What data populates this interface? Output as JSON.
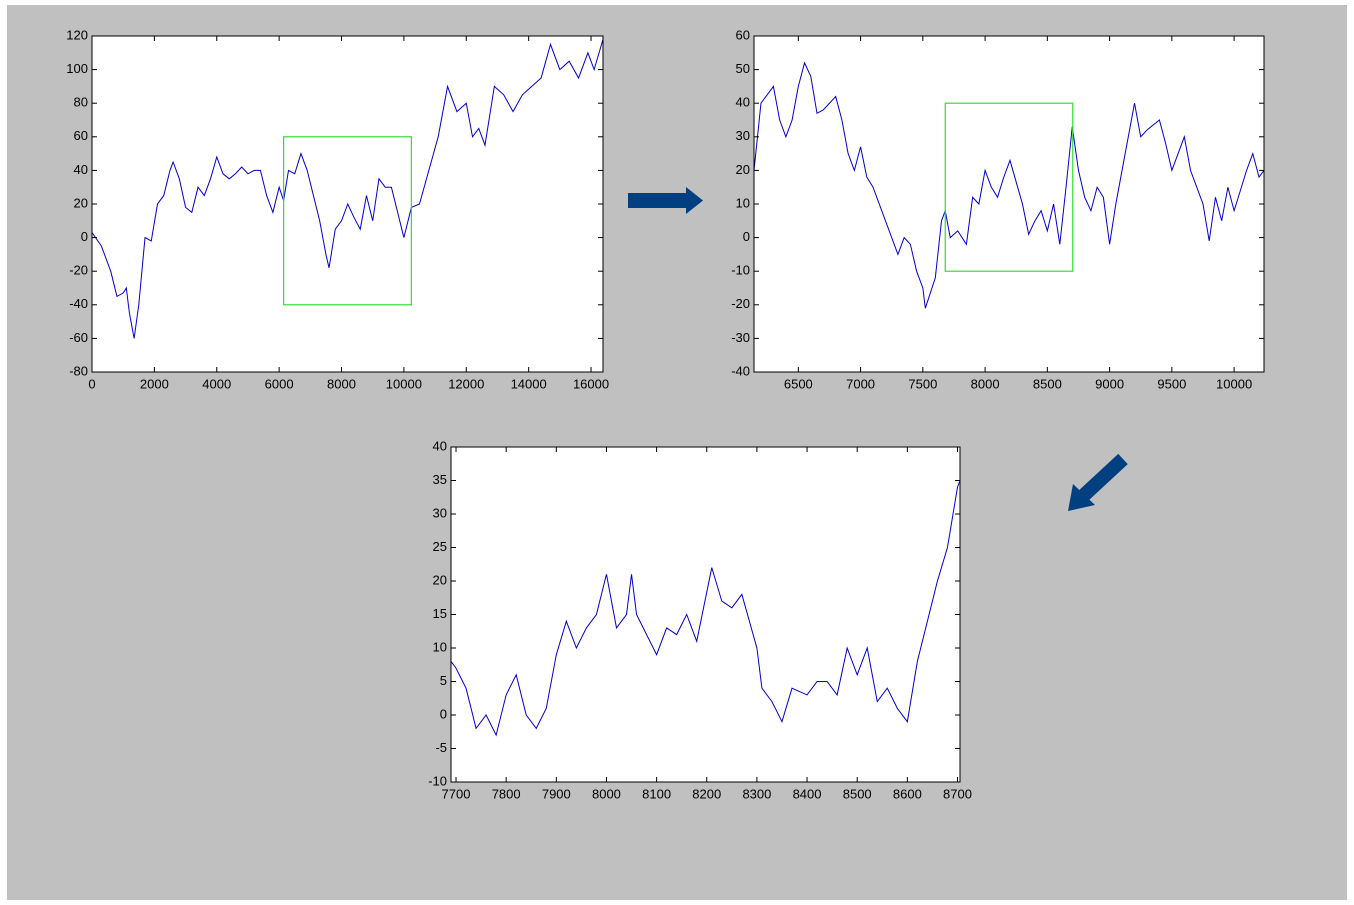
{
  "chart_data": [
    {
      "type": "line",
      "x": [
        0,
        300,
        600,
        800,
        1000,
        1100,
        1200,
        1350,
        1500,
        1700,
        1900,
        2100,
        2300,
        2500,
        2600,
        2800,
        3000,
        3200,
        3400,
        3600,
        3800,
        4000,
        4200,
        4400,
        4600,
        4800,
        5000,
        5200,
        5400,
        5600,
        5800,
        6000,
        6144,
        6300,
        6500,
        6700,
        6900,
        7100,
        7300,
        7500,
        7600,
        7800,
        8000,
        8200,
        8400,
        8600,
        8800,
        9000,
        9200,
        9400,
        9600,
        9800,
        10000,
        10240,
        10500,
        10800,
        11100,
        11400,
        11700,
        12000,
        12200,
        12400,
        12600,
        12900,
        13200,
        13500,
        13800,
        14100,
        14400,
        14700,
        15000,
        15300,
        15600,
        15900,
        16100,
        16384
      ],
      "series": [
        {
          "color": "#0000cc",
          "values": [
            3,
            -5,
            -20,
            -35,
            -33,
            -30,
            -45,
            -60,
            -40,
            0,
            -2,
            20,
            25,
            40,
            45,
            35,
            18,
            15,
            30,
            25,
            35,
            48,
            38,
            35,
            38,
            42,
            38,
            40,
            40,
            25,
            15,
            30,
            22,
            40,
            38,
            50,
            40,
            25,
            10,
            -10,
            -18,
            5,
            10,
            20,
            12,
            5,
            25,
            10,
            35,
            30,
            30,
            15,
            0,
            18,
            20,
            40,
            60,
            90,
            75,
            80,
            60,
            65,
            55,
            90,
            85,
            75,
            85,
            90,
            95,
            115,
            100,
            105,
            95,
            110,
            100,
            118
          ]
        }
      ],
      "xlim": [
        0,
        16384
      ],
      "ylim": [
        -80,
        120
      ],
      "xticks": [
        0,
        2000,
        4000,
        6000,
        8000,
        10000,
        12000,
        14000,
        16000
      ],
      "yticks": [
        -80,
        -60,
        -40,
        -20,
        0,
        20,
        40,
        60,
        80,
        100,
        120
      ],
      "zoom_box": {
        "color": "#33dd33",
        "x": [
          6144,
          10240
        ],
        "y": [
          -40,
          60
        ]
      }
    },
    {
      "type": "line",
      "x": [
        6144,
        6200,
        6300,
        6350,
        6400,
        6450,
        6500,
        6550,
        6600,
        6650,
        6700,
        6800,
        6850,
        6900,
        6950,
        7000,
        7050,
        7100,
        7200,
        7300,
        7350,
        7400,
        7450,
        7500,
        7520,
        7600,
        7650,
        7680,
        7720,
        7780,
        7850,
        7900,
        7950,
        8000,
        8050,
        8100,
        8150,
        8200,
        8300,
        8350,
        8400,
        8450,
        8500,
        8550,
        8600,
        8650,
        8700,
        8750,
        8800,
        8850,
        8900,
        8950,
        9000,
        9050,
        9100,
        9200,
        9250,
        9300,
        9400,
        9450,
        9500,
        9600,
        9650,
        9700,
        9750,
        9800,
        9850,
        9900,
        9950,
        10000,
        10100,
        10150,
        10200,
        10240
      ],
      "series": [
        {
          "color": "#0000cc",
          "values": [
            20,
            40,
            45,
            35,
            30,
            35,
            45,
            52,
            48,
            37,
            38,
            42,
            35,
            25,
            20,
            27,
            18,
            15,
            5,
            -5,
            0,
            -2,
            -10,
            -15,
            -21,
            -12,
            5,
            8,
            0,
            2,
            -2,
            12,
            10,
            20,
            15,
            12,
            18,
            23,
            10,
            1,
            5,
            8,
            2,
            10,
            -2,
            15,
            33,
            20,
            12,
            8,
            15,
            12,
            -2,
            10,
            20,
            40,
            30,
            32,
            35,
            28,
            20,
            30,
            20,
            15,
            10,
            -1,
            12,
            5,
            15,
            8,
            20,
            25,
            18,
            20
          ]
        }
      ],
      "xlim": [
        6144,
        10240
      ],
      "ylim": [
        -40,
        60
      ],
      "xticks": [
        6500,
        7000,
        7500,
        8000,
        8500,
        9000,
        9500,
        10000
      ],
      "yticks": [
        -40,
        -30,
        -20,
        -10,
        0,
        10,
        20,
        30,
        40,
        50,
        60
      ],
      "zoom_box": {
        "color": "#33dd33",
        "x": [
          7680,
          8704
        ],
        "y": [
          -10,
          40
        ]
      }
    },
    {
      "type": "line",
      "x": [
        7690,
        7700,
        7720,
        7740,
        7760,
        7780,
        7800,
        7820,
        7840,
        7860,
        7880,
        7900,
        7920,
        7940,
        7960,
        7980,
        8000,
        8020,
        8040,
        8050,
        8060,
        8080,
        8100,
        8120,
        8140,
        8160,
        8180,
        8210,
        8230,
        8250,
        8270,
        8300,
        8310,
        8330,
        8350,
        8370,
        8400,
        8420,
        8440,
        8460,
        8480,
        8500,
        8520,
        8540,
        8560,
        8580,
        8600,
        8620,
        8640,
        8660,
        8680,
        8700,
        8705
      ],
      "series": [
        {
          "color": "#0000cc",
          "values": [
            8,
            7,
            4,
            -2,
            0,
            -3,
            3,
            6,
            0,
            -2,
            1,
            9,
            14,
            10,
            13,
            15,
            21,
            13,
            15,
            21,
            15,
            12,
            9,
            13,
            12,
            15,
            11,
            22,
            17,
            16,
            18,
            10,
            4,
            2,
            -1,
            4,
            3,
            5,
            5,
            3,
            10,
            6,
            10,
            2,
            4,
            1,
            -1,
            8,
            14,
            20,
            25,
            34,
            35
          ]
        }
      ],
      "xlim": [
        7690,
        8705
      ],
      "ylim": [
        -10,
        40
      ],
      "xticks": [
        7700,
        7800,
        7900,
        8000,
        8100,
        8200,
        8300,
        8400,
        8500,
        8600,
        8700
      ],
      "yticks": [
        -10,
        -5,
        0,
        5,
        10,
        15,
        20,
        25,
        30,
        35,
        40
      ]
    }
  ]
}
